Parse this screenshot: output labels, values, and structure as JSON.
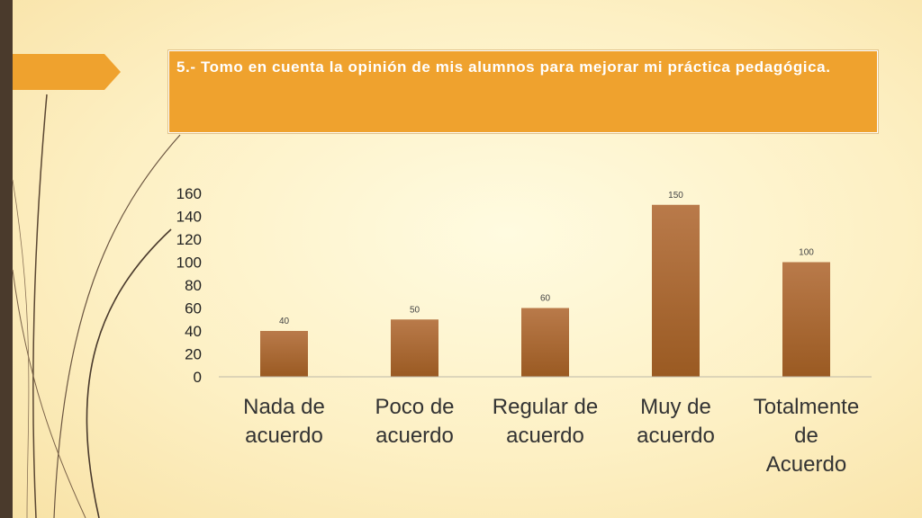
{
  "slide": {
    "title": "5.- Tomo en cuenta la opinión de mis alumnos para mejorar mi práctica pedagógica."
  },
  "colors": {
    "bar_top": "#b97a4a",
    "bar_bottom": "#9a5a22",
    "title_bg": "#efa22e",
    "left_bar": "#4a3a2c"
  },
  "chart_data": {
    "type": "bar",
    "categories": [
      [
        "Nada de",
        "acuerdo"
      ],
      [
        "Poco de",
        "acuerdo"
      ],
      [
        "Regular de",
        "acuerdo"
      ],
      [
        "Muy de",
        "acuerdo"
      ],
      [
        "Totalmente",
        "de",
        "Acuerdo"
      ]
    ],
    "values": [
      40,
      50,
      60,
      150,
      100
    ],
    "data_labels": [
      "40",
      "50",
      "60",
      "150",
      "100"
    ],
    "ylim": [
      0,
      160
    ],
    "yticks": [
      0,
      20,
      40,
      60,
      80,
      100,
      120,
      140,
      160
    ],
    "grid": false,
    "legend": "none",
    "title": "",
    "xlabel": "",
    "ylabel": ""
  }
}
